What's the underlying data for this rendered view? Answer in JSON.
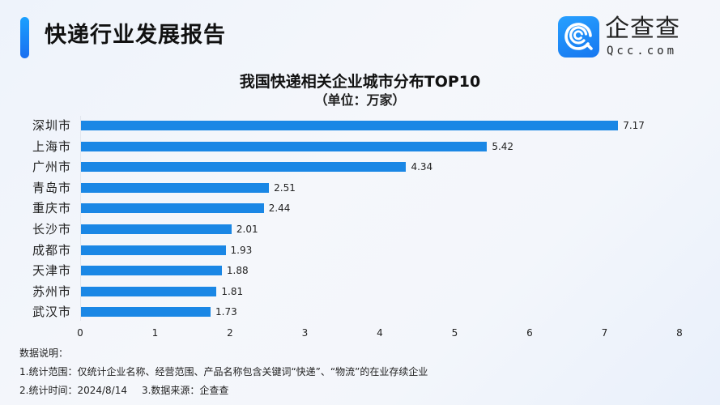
{
  "header": {
    "title": "快递行业发展报告",
    "accent_color": "#1a87f0"
  },
  "logo": {
    "name_cn": "企查查",
    "name_en": "Qcc.com",
    "icon": "qcc-logo-icon"
  },
  "chart": {
    "title": "我国快递相关企业城市分布TOP10",
    "subtitle": "（单位：万家）",
    "bar_color": "#1a87e5"
  },
  "chart_data": {
    "type": "bar",
    "orientation": "horizontal",
    "title": "我国快递相关企业城市分布TOP10",
    "subtitle": "（单位：万家）",
    "categories": [
      "深圳市",
      "上海市",
      "广州市",
      "青岛市",
      "重庆市",
      "长沙市",
      "成都市",
      "天津市",
      "苏州市",
      "武汉市"
    ],
    "values": [
      7.17,
      5.42,
      4.34,
      2.51,
      2.44,
      2.01,
      1.93,
      1.88,
      1.81,
      1.73
    ],
    "value_labels": [
      "7.17",
      "5.42",
      "4.34",
      "2.51",
      "2.44",
      "2.01",
      "1.93",
      "1.88",
      "1.81",
      "1.73"
    ],
    "xlabel": "",
    "ylabel": "",
    "unit": "万家",
    "xlim": [
      0,
      8
    ],
    "x_ticks": [
      "0",
      "1",
      "2",
      "3",
      "4",
      "5",
      "6",
      "7",
      "8"
    ],
    "grid": false,
    "legend": null,
    "bar_color": "#1a87e5"
  },
  "notes": {
    "heading": "数据说明：",
    "line1": "1.统计范围：仅统计企业名称、经营范围、产品名称包含关键词“快递”、“物流”的在业存续企业",
    "line2a": "2.统计时间：2024/8/14",
    "line2b": "3.数据来源：企查查"
  }
}
